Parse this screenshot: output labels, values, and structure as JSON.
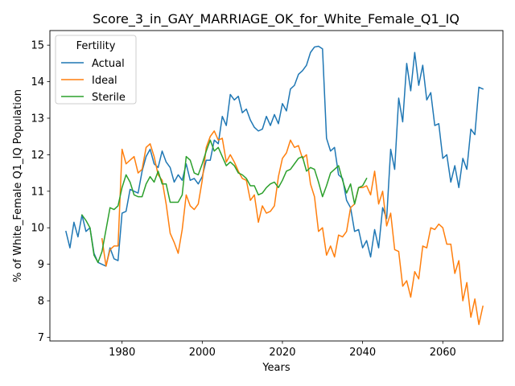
{
  "chart_data": {
    "type": "line",
    "title": "Score_3_in_GAY_MARRIAGE_OK_for_White_Female_Q1_IQ",
    "xlabel": "Years",
    "ylabel": "% of White_Female Q1_IQ Population",
    "xlim": [
      1962,
      2075
    ],
    "ylim": [
      6.9,
      15.4
    ],
    "xticks": [
      1980,
      2000,
      2020,
      2040,
      2060
    ],
    "yticks": [
      7,
      8,
      9,
      10,
      11,
      12,
      13,
      14,
      15
    ],
    "grid": false,
    "legend": {
      "title": "Fertility",
      "placement": "top-left"
    },
    "series": [
      {
        "name": "Actual",
        "color": "#1f77b4",
        "x": [
          1966,
          1967,
          1968,
          1969,
          1970,
          1971,
          1972,
          1973,
          1974,
          1975,
          1976,
          1977,
          1978,
          1979,
          1980,
          1981,
          1982,
          1983,
          1984,
          1985,
          1986,
          1987,
          1988,
          1989,
          1990,
          1991,
          1992,
          1993,
          1994,
          1995,
          1996,
          1997,
          1998,
          1999,
          2000,
          2001,
          2002,
          2003,
          2004,
          2005,
          2006,
          2007,
          2008,
          2009,
          2010,
          2011,
          2012,
          2013,
          2014,
          2015,
          2016,
          2017,
          2018,
          2019,
          2020,
          2021,
          2022,
          2023,
          2024,
          2025,
          2026,
          2027,
          2028,
          2029,
          2030,
          2031,
          2032,
          2033,
          2034,
          2035,
          2036,
          2037,
          2038,
          2039,
          2040,
          2041,
          2042,
          2043,
          2044,
          2045,
          2046,
          2047,
          2048,
          2049,
          2050,
          2051,
          2052,
          2053,
          2054,
          2055,
          2056,
          2057,
          2058,
          2059,
          2060,
          2061,
          2062,
          2063,
          2064,
          2065,
          2066,
          2067,
          2068,
          2069,
          2070
        ],
        "y": [
          9.9,
          9.45,
          10.15,
          9.75,
          10.35,
          9.9,
          10.0,
          9.3,
          9.05,
          9.0,
          8.95,
          9.45,
          9.15,
          9.1,
          10.4,
          10.45,
          11.05,
          11.0,
          10.95,
          11.55,
          11.95,
          12.15,
          11.75,
          11.65,
          12.1,
          11.8,
          11.65,
          11.25,
          11.45,
          11.3,
          11.75,
          11.3,
          11.35,
          11.2,
          11.4,
          11.85,
          11.85,
          12.4,
          12.3,
          13.05,
          12.8,
          13.65,
          13.5,
          13.6,
          13.15,
          13.25,
          12.95,
          12.75,
          12.65,
          12.7,
          13.05,
          12.8,
          13.1,
          12.85,
          13.4,
          13.2,
          13.8,
          13.9,
          14.2,
          14.3,
          14.45,
          14.8,
          14.95,
          14.97,
          14.9,
          12.45,
          12.1,
          12.2,
          11.45,
          11.35,
          10.75,
          10.55,
          9.9,
          9.95,
          9.45,
          9.65,
          9.2,
          9.95,
          9.45,
          10.55,
          10.25,
          12.15,
          11.6,
          13.55,
          12.9,
          14.5,
          13.75,
          14.8,
          13.9,
          14.45,
          13.5,
          13.7,
          12.8,
          12.85,
          11.9,
          12.0,
          11.25,
          11.7,
          11.1,
          11.9,
          11.6,
          12.7,
          12.55,
          13.85,
          13.8
        ]
      },
      {
        "name": "Ideal",
        "color": "#ff7f0e",
        "x": [
          1975,
          1976,
          1977,
          1978,
          1979,
          1980,
          1981,
          1982,
          1983,
          1984,
          1985,
          1986,
          1987,
          1988,
          1989,
          1990,
          1991,
          1992,
          1993,
          1994,
          1995,
          1996,
          1997,
          1998,
          1999,
          2000,
          2001,
          2002,
          2003,
          2004,
          2005,
          2006,
          2007,
          2008,
          2009,
          2010,
          2011,
          2012,
          2013,
          2014,
          2015,
          2016,
          2017,
          2018,
          2019,
          2020,
          2021,
          2022,
          2023,
          2024,
          2025,
          2026,
          2027,
          2028,
          2029,
          2030,
          2031,
          2032,
          2033,
          2034,
          2035,
          2036,
          2037,
          2038,
          2039,
          2040,
          2041,
          2042,
          2043,
          2044,
          2045,
          2046,
          2047,
          2048,
          2049,
          2050,
          2051,
          2052,
          2053,
          2054,
          2055,
          2056,
          2057,
          2058,
          2059,
          2060,
          2061,
          2062,
          2063,
          2064,
          2065,
          2066,
          2067,
          2068,
          2069,
          2070
        ],
        "y": [
          9.7,
          8.95,
          9.4,
          9.5,
          9.5,
          12.15,
          11.75,
          11.85,
          11.95,
          11.5,
          11.6,
          12.2,
          12.3,
          11.95,
          11.45,
          11.3,
          10.65,
          9.85,
          9.6,
          9.3,
          9.95,
          10.9,
          10.6,
          10.5,
          10.65,
          11.3,
          12.2,
          12.5,
          12.65,
          12.4,
          12.45,
          11.8,
          12.0,
          11.8,
          11.55,
          11.35,
          11.3,
          10.75,
          10.9,
          10.15,
          10.6,
          10.4,
          10.45,
          10.6,
          11.4,
          11.9,
          12.05,
          12.4,
          12.2,
          12.25,
          11.9,
          12.0,
          11.2,
          10.85,
          9.9,
          10.0,
          9.25,
          9.5,
          9.2,
          9.8,
          9.75,
          9.9,
          10.55,
          10.65,
          11.1,
          11.1,
          11.15,
          10.9,
          11.55,
          10.65,
          11.0,
          10.05,
          10.4,
          9.4,
          9.35,
          8.4,
          8.55,
          8.1,
          8.8,
          8.6,
          9.5,
          9.45,
          10.0,
          9.95,
          10.1,
          10.0,
          9.55,
          9.55,
          8.75,
          9.1,
          8.0,
          8.5,
          7.55,
          8.05,
          7.35,
          7.85
        ]
      },
      {
        "name": "Sterile",
        "color": "#2ca02c",
        "x": [
          1970,
          1971,
          1972,
          1973,
          1974,
          1975,
          1976,
          1977,
          1978,
          1979,
          1980,
          1981,
          1982,
          1983,
          1984,
          1985,
          1986,
          1987,
          1988,
          1989,
          1990,
          1991,
          1992,
          1993,
          1994,
          1995,
          1996,
          1997,
          1998,
          1999,
          2000,
          2001,
          2002,
          2003,
          2004,
          2005,
          2006,
          2007,
          2008,
          2009,
          2010,
          2011,
          2012,
          2013,
          2014,
          2015,
          2016,
          2017,
          2018,
          2019,
          2020,
          2021,
          2022,
          2023,
          2024,
          2025,
          2026,
          2027,
          2028,
          2029,
          2030,
          2031,
          2032,
          2033,
          2034,
          2035,
          2036,
          2037,
          2038,
          2039,
          2040,
          2041
        ],
        "y": [
          10.35,
          10.2,
          10.0,
          9.25,
          9.05,
          9.35,
          9.95,
          10.55,
          10.5,
          10.6,
          11.1,
          11.45,
          11.25,
          10.9,
          10.85,
          10.85,
          11.2,
          11.4,
          11.25,
          11.55,
          11.2,
          11.2,
          10.7,
          10.7,
          10.7,
          10.9,
          11.95,
          11.85,
          11.5,
          11.45,
          11.75,
          12.1,
          12.4,
          12.1,
          12.2,
          11.95,
          11.7,
          11.8,
          11.7,
          11.5,
          11.45,
          11.35,
          11.15,
          11.15,
          10.9,
          10.95,
          11.1,
          11.2,
          11.25,
          11.1,
          11.3,
          11.55,
          11.6,
          11.75,
          11.9,
          11.95,
          11.55,
          11.65,
          11.6,
          11.25,
          10.85,
          11.15,
          11.5,
          11.6,
          11.7,
          11.3,
          10.95,
          11.2,
          10.65,
          11.1,
          11.15,
          11.35
        ]
      }
    ]
  }
}
